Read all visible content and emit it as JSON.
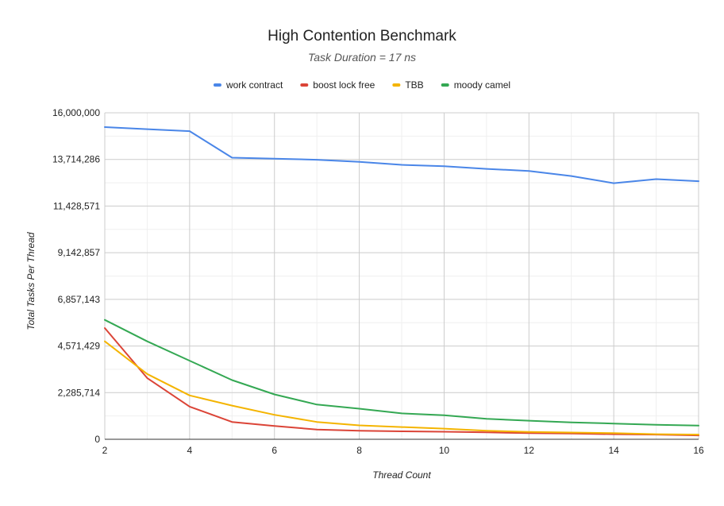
{
  "chart_data": {
    "type": "line",
    "title": "High Contention Benchmark",
    "subtitle": "Task Duration = 17 ns",
    "xlabel": "Thread Count",
    "ylabel": "Total Tasks Per Thread",
    "x": [
      2,
      3,
      4,
      5,
      6,
      7,
      8,
      9,
      10,
      11,
      12,
      13,
      14,
      15,
      16
    ],
    "xlim": [
      2,
      16
    ],
    "x_ticks": [
      2,
      4,
      6,
      8,
      10,
      12,
      14,
      16
    ],
    "x_tick_labels": [
      "2",
      "4",
      "6",
      "8",
      "10",
      "12",
      "14",
      "16"
    ],
    "ylim": [
      0,
      16000000
    ],
    "y_ticks": [
      0,
      2285714,
      4571429,
      6857143,
      9142857,
      11428571,
      13714286,
      16000000
    ],
    "y_tick_labels": [
      "0",
      "2,285,714",
      "4,571,429",
      "6,857,143",
      "9,142,857",
      "11,428,571",
      "13,714,286",
      "16,000,000"
    ],
    "grid": true,
    "legend_position": "top",
    "series": [
      {
        "name": "work contract",
        "color": "#4a86e8",
        "values": [
          15300000,
          15200000,
          15100000,
          13800000,
          13750000,
          13700000,
          13600000,
          13450000,
          13380000,
          13250000,
          13150000,
          12900000,
          12550000,
          12750000,
          12650000
        ]
      },
      {
        "name": "boost lock free",
        "color": "#db4437",
        "values": [
          5450000,
          3000000,
          1600000,
          850000,
          650000,
          480000,
          420000,
          390000,
          370000,
          340000,
          300000,
          280000,
          250000,
          230000,
          190000
        ]
      },
      {
        "name": "TBB",
        "color": "#f4b400",
        "values": [
          4800000,
          3200000,
          2150000,
          1650000,
          1200000,
          850000,
          680000,
          600000,
          520000,
          420000,
          360000,
          330000,
          300000,
          250000,
          230000
        ]
      },
      {
        "name": "moody camel",
        "color": "#34a853",
        "values": [
          5850000,
          4800000,
          3850000,
          2900000,
          2200000,
          1700000,
          1500000,
          1270000,
          1180000,
          1000000,
          910000,
          830000,
          770000,
          710000,
          670000
        ]
      }
    ]
  }
}
